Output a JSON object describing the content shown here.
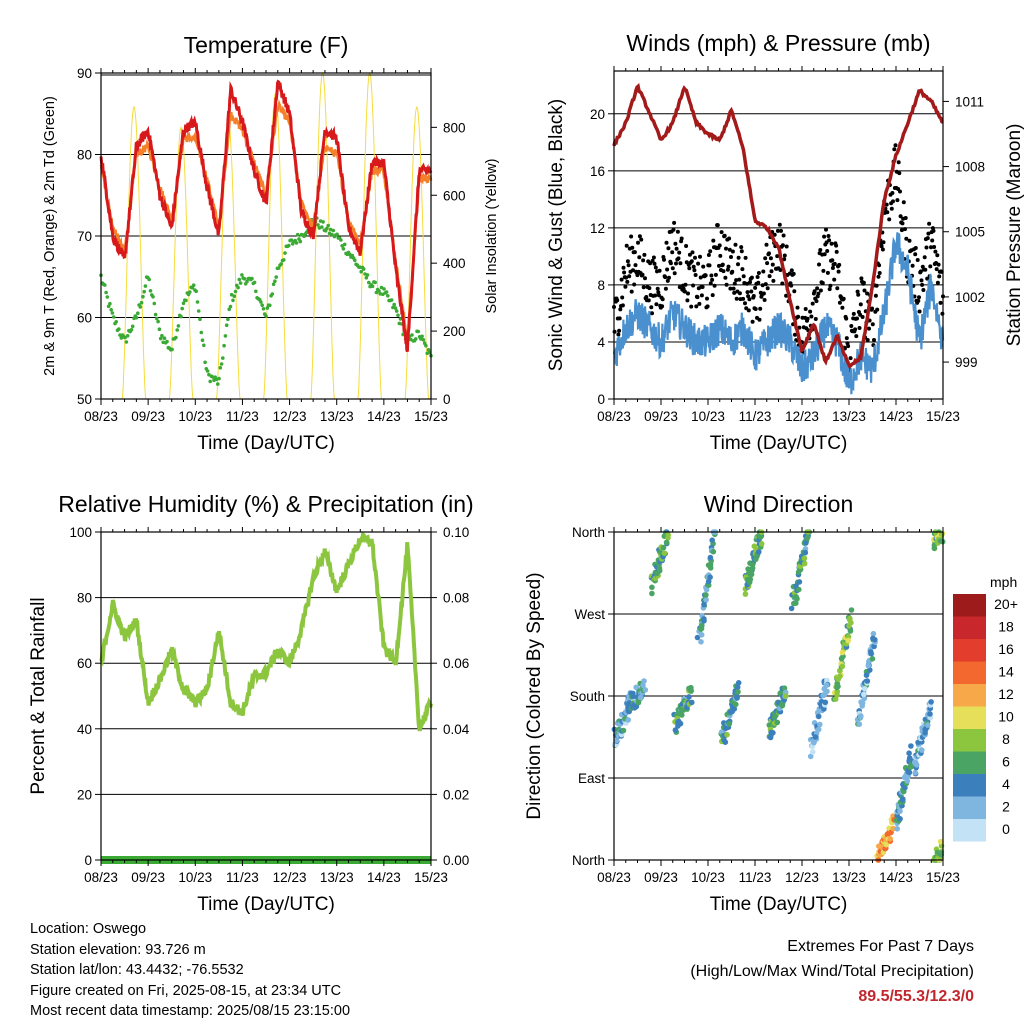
{
  "time_ticks": [
    "08/23",
    "09/23",
    "10/23",
    "11/23",
    "12/23",
    "13/23",
    "14/23",
    "15/23"
  ],
  "panels": {
    "temperature": {
      "title": "Temperature (F)",
      "xlabel": "Time (Day/UTC)",
      "ylabel": "2m & 9m T (Red, Orange) & 2m Td (Green)",
      "ylabel_right": "Solar Insolation (Yellow)"
    },
    "winds": {
      "title": "Winds (mph) & Pressure (mb)",
      "xlabel": "Time (Day/UTC)",
      "ylabel": "Sonic Wind & Gust (Blue, Black)",
      "ylabel_right": "Station Pressure (Maroon)"
    },
    "humidity": {
      "title": "Relative Humidity (%) & Precipitation (in)",
      "xlabel": "Time (Day/UTC)",
      "ylabel": "Percent & Total Rainfall"
    },
    "direction": {
      "title": "Wind Direction",
      "xlabel": "Time (Day/UTC)",
      "ylabel": "Direction (Colored By Speed)",
      "legend_unit": "mph"
    }
  },
  "footer": {
    "location": "Location: Oswego",
    "elevation": "Station elevation: 93.726 m",
    "latlon": "Station lat/lon: 43.4432; -76.5532",
    "created": "Figure created on Fri, 2025-08-15, at 23:34 UTC",
    "recent": "Most recent data timestamp: 2025/08/15 23:15:00",
    "extremes_title": "Extremes For Past 7 Days",
    "extremes_sub": "(High/Low/Max Wind/Total Precipitation)",
    "extremes_values": "89.5/55.3/12.3/0"
  },
  "colors": {
    "temp_2m": "#d7191c",
    "temp_9m": "#f4802a",
    "dewpoint": "#3aaa35",
    "solar": "#f5dc3c",
    "wind": "#4a90cf",
    "gust": "#000000",
    "pressure": "#a31a1a",
    "humidity": "#8cc63f",
    "precip": "#3aaa35"
  },
  "chart_data": [
    {
      "type": "line",
      "title": "Temperature (F)",
      "xlabel": "Time (Day/UTC)",
      "ylabel": "2m & 9m T (Red, Orange) & 2m Td (Green)",
      "ylabel_right": "Solar Insolation (Yellow)",
      "x_ticks": [
        "08/23",
        "09/23",
        "10/23",
        "11/23",
        "12/23",
        "13/23",
        "14/23",
        "15/23"
      ],
      "ylim": [
        50,
        90
      ],
      "y_ticks": [
        50,
        60,
        70,
        80,
        90
      ],
      "ylim_right": [
        0,
        960
      ],
      "y_ticks_right": [
        0,
        200,
        400,
        600,
        800
      ],
      "x": [
        0.0,
        0.25,
        0.5,
        0.75,
        1.0,
        1.25,
        1.5,
        1.75,
        2.0,
        2.25,
        2.5,
        2.75,
        3.0,
        3.25,
        3.5,
        3.75,
        4.0,
        4.25,
        4.5,
        4.75,
        5.0,
        5.25,
        5.5,
        5.75,
        6.0,
        6.25,
        6.5,
        6.75,
        7.0
      ],
      "series": [
        {
          "name": "2m T",
          "color": "#d7191c",
          "values": [
            80.0,
            70.0,
            67.0,
            81.0,
            83.0,
            75.0,
            71.0,
            83.0,
            84.0,
            76.0,
            70.0,
            88.0,
            84.0,
            78.0,
            74.0,
            89.0,
            85.0,
            73.0,
            70.0,
            83.0,
            82.0,
            71.0,
            68.0,
            79.0,
            79.0,
            66.0,
            56.0,
            78.0,
            78.0
          ]
        },
        {
          "name": "9m T",
          "color": "#f4802a",
          "values": [
            79.0,
            71.0,
            68.0,
            80.0,
            81.0,
            76.0,
            72.0,
            82.0,
            82.0,
            77.0,
            71.0,
            85.0,
            83.0,
            79.0,
            75.0,
            86.0,
            84.0,
            74.0,
            71.0,
            81.0,
            80.0,
            72.0,
            69.0,
            78.0,
            78.0,
            67.0,
            57.0,
            77.0,
            77.0
          ]
        },
        {
          "name": "2m Td",
          "color": "#3aaa35",
          "values": [
            65.0,
            60.0,
            57.0,
            60.0,
            65.0,
            58.0,
            56.0,
            62.0,
            64.0,
            53.0,
            52.0,
            62.0,
            65.0,
            64.0,
            60.0,
            66.0,
            69.0,
            70.0,
            72.0,
            71.0,
            70.0,
            68.0,
            66.0,
            64.0,
            63.0,
            61.0,
            57.0,
            58.0,
            55.0
          ]
        },
        {
          "name": "Solar Insolation",
          "color": "#f5dc3c",
          "axis": "right",
          "values": [
            0,
            0,
            0,
            860,
            0,
            0,
            0,
            800,
            0,
            0,
            0,
            820,
            0,
            0,
            0,
            900,
            0,
            0,
            0,
            960,
            0,
            0,
            0,
            0,
            0,
            0,
            0,
            860,
            0
          ]
        }
      ],
      "grid": true
    },
    {
      "type": "line",
      "title": "Winds (mph) & Pressure (mb)",
      "xlabel": "Time (Day/UTC)",
      "ylabel": "Sonic Wind & Gust (Blue, Black)",
      "ylabel_right": "Station Pressure (Maroon)",
      "x_ticks": [
        "08/23",
        "09/23",
        "10/23",
        "11/23",
        "12/23",
        "13/23",
        "14/23",
        "15/23"
      ],
      "ylim": [
        0,
        23
      ],
      "y_ticks": [
        0,
        4,
        8,
        12,
        16,
        20
      ],
      "ylim_right": [
        997.3,
        1012.4
      ],
      "y_ticks_right": [
        999,
        1002,
        1005,
        1008,
        1011
      ],
      "x": [
        0.0,
        0.25,
        0.5,
        0.75,
        1.0,
        1.25,
        1.5,
        1.75,
        2.0,
        2.25,
        2.5,
        2.75,
        3.0,
        3.25,
        3.5,
        3.75,
        4.0,
        4.25,
        4.5,
        4.75,
        5.0,
        5.25,
        5.5,
        5.75,
        6.0,
        6.25,
        6.5,
        6.75,
        7.0
      ],
      "series": [
        {
          "name": "Sonic Wind",
          "color": "#4a90cf",
          "values": [
            3,
            5,
            6,
            5,
            4,
            6,
            5,
            4,
            4,
            5,
            4,
            5,
            3,
            4,
            5,
            4,
            2,
            3,
            5,
            4,
            1,
            3,
            2,
            6,
            11,
            9,
            4,
            8,
            4
          ]
        },
        {
          "name": "Gust",
          "color": "#000000",
          "values": [
            5,
            9,
            10,
            8,
            8,
            11,
            9,
            8,
            8,
            11,
            9,
            9,
            6,
            9,
            11,
            8,
            4,
            7,
            10,
            9,
            3,
            7,
            5,
            13,
            16,
            10,
            8,
            11,
            7
          ]
        },
        {
          "name": "Station Pressure",
          "color": "#a31a1a",
          "axis": "right",
          "values": [
            1009.0,
            1010.0,
            1011.7,
            1010.5,
            1009.2,
            1010.0,
            1011.7,
            1010.0,
            1009.5,
            1009.2,
            1010.6,
            1008.8,
            1005.5,
            1005.2,
            1004.3,
            1001.8,
            999.5,
            1000.8,
            999.0,
            1000.2,
            998.8,
            999.2,
            1002.5,
            1006.5,
            1008.5,
            1010.0,
            1011.5,
            1011.0,
            1010.0
          ]
        }
      ],
      "grid": true
    },
    {
      "type": "line",
      "title": "Relative Humidity (%) & Precipitation (in)",
      "xlabel": "Time (Day/UTC)",
      "ylabel": "Percent & Total Rainfall",
      "x_ticks": [
        "08/23",
        "09/23",
        "10/23",
        "11/23",
        "12/23",
        "13/23",
        "14/23",
        "15/23"
      ],
      "ylim": [
        0,
        100
      ],
      "y_ticks": [
        0,
        20,
        40,
        60,
        80,
        100
      ],
      "ylim_right": [
        0,
        0.1
      ],
      "y_ticks_right": [
        "0.00",
        "0.02",
        "0.04",
        "0.06",
        "0.08",
        "0.10"
      ],
      "x": [
        0.0,
        0.25,
        0.5,
        0.75,
        1.0,
        1.25,
        1.5,
        1.75,
        2.0,
        2.25,
        2.5,
        2.75,
        3.0,
        3.25,
        3.5,
        3.75,
        4.0,
        4.25,
        4.5,
        4.75,
        5.0,
        5.25,
        5.5,
        5.75,
        6.0,
        6.25,
        6.5,
        6.75,
        7.0
      ],
      "series": [
        {
          "name": "Relative Humidity",
          "color": "#8cc63f",
          "values": [
            60,
            78,
            68,
            73,
            48,
            55,
            64,
            52,
            48,
            52,
            70,
            48,
            45,
            56,
            57,
            64,
            60,
            70,
            86,
            94,
            82,
            90,
            98,
            97,
            65,
            60,
            96,
            40,
            48
          ]
        },
        {
          "name": "Total Precipitation",
          "color": "#3aaa35",
          "axis": "right",
          "values": [
            0,
            0,
            0,
            0,
            0,
            0,
            0,
            0,
            0,
            0,
            0,
            0,
            0,
            0,
            0,
            0,
            0,
            0,
            0,
            0,
            0,
            0,
            0,
            0,
            0,
            0,
            0,
            0,
            0
          ]
        }
      ],
      "grid": true
    },
    {
      "type": "scatter",
      "title": "Wind Direction",
      "xlabel": "Time (Day/UTC)",
      "ylabel": "Direction (Colored By Speed)",
      "x_ticks": [
        "08/23",
        "09/23",
        "10/23",
        "11/23",
        "12/23",
        "13/23",
        "14/23",
        "15/23"
      ],
      "y_ticks": [
        "North",
        "East",
        "South",
        "West",
        "North"
      ],
      "ylim": [
        0,
        360
      ],
      "colorbar": {
        "unit": "mph",
        "labels": [
          "20+",
          "18",
          "16",
          "14",
          "12",
          "10",
          "8",
          "6",
          "4",
          "2",
          "0"
        ],
        "colors": [
          "#9e1b1b",
          "#c8272c",
          "#e33d2d",
          "#f2682f",
          "#f7a94a",
          "#e6df5a",
          "#8cc63f",
          "#4aa564",
          "#3c7fbd",
          "#7fb6e0",
          "#c3e2f5"
        ]
      },
      "points_per_day": [
        {
          "day_start": 0.0,
          "from_dir": 130,
          "to_dir": 170,
          "speed": 3
        },
        {
          "day_start": 0.3,
          "from_dir": 170,
          "to_dir": 190,
          "speed": 4
        },
        {
          "day_start": 0.8,
          "from_dir": 300,
          "to_dir": 360,
          "speed": 6
        },
        {
          "day_start": 1.3,
          "from_dir": 150,
          "to_dir": 185,
          "speed": 5
        },
        {
          "day_start": 1.8,
          "from_dir": 240,
          "to_dir": 360,
          "speed": 4
        },
        {
          "day_start": 2.3,
          "from_dir": 130,
          "to_dir": 190,
          "speed": 5
        },
        {
          "day_start": 2.8,
          "from_dir": 300,
          "to_dir": 360,
          "speed": 6
        },
        {
          "day_start": 3.3,
          "from_dir": 140,
          "to_dir": 190,
          "speed": 5
        },
        {
          "day_start": 3.8,
          "from_dir": 280,
          "to_dir": 360,
          "speed": 5
        },
        {
          "day_start": 4.2,
          "from_dir": 120,
          "to_dir": 200,
          "speed": 2
        },
        {
          "day_start": 4.7,
          "from_dir": 180,
          "to_dir": 270,
          "speed": 7
        },
        {
          "day_start": 5.2,
          "from_dir": 150,
          "to_dir": 250,
          "speed": 3
        },
        {
          "day_start": 5.6,
          "from_dir": 0,
          "to_dir": 40,
          "speed": 12
        },
        {
          "day_start": 6.0,
          "from_dir": 40,
          "to_dir": 120,
          "speed": 4
        },
        {
          "day_start": 6.4,
          "from_dir": 100,
          "to_dir": 170,
          "speed": 3
        },
        {
          "day_start": 6.8,
          "from_dir": 0,
          "to_dir": 20,
          "speed": 7
        },
        {
          "day_start": 6.8,
          "from_dir": 350,
          "to_dir": 360,
          "speed": 7
        }
      ],
      "grid": true
    }
  ]
}
